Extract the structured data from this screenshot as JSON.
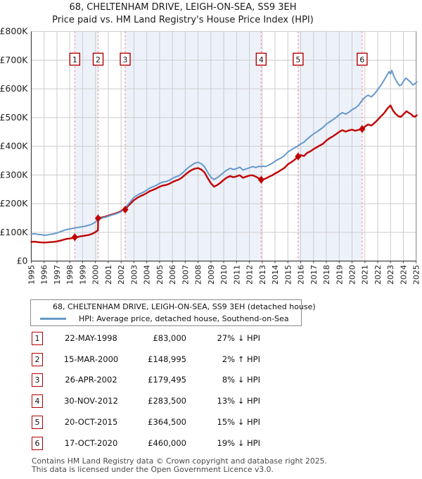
{
  "title": "68, CHELTENHAM DRIVE, LEIGH-ON-SEA, SS9 3EH",
  "subtitle": "Price paid vs. HM Land Registry's House Price Index (HPI)",
  "legend": [
    {
      "label": "68, CHELTENHAM DRIVE, LEIGH-ON-SEA, SS9 3EH (detached house)",
      "color": "#c00000"
    },
    {
      "label": "HPI: Average price, detached house, Southend-on-Sea",
      "color": "#6699cc"
    }
  ],
  "chart_data": {
    "type": "line",
    "title": "Price paid vs. HM Land Registry's House Price Index (HPI)",
    "xlabel": "",
    "ylabel": "",
    "x_range": [
      1995,
      2025
    ],
    "y_range_gbp": [
      0,
      800000
    ],
    "grid": true,
    "units": "GBP thousands",
    "y_ticks": [
      {
        "value": 0,
        "label": "£0"
      },
      {
        "value": 100,
        "label": "£100K"
      },
      {
        "value": 200,
        "label": "£200K"
      },
      {
        "value": 300,
        "label": "£300K"
      },
      {
        "value": 400,
        "label": "£400K"
      },
      {
        "value": 500,
        "label": "£500K"
      },
      {
        "value": 600,
        "label": "£600K"
      },
      {
        "value": 700,
        "label": "£700K"
      },
      {
        "value": 800,
        "label": "£800K"
      }
    ],
    "x_ticks": [
      1995,
      1996,
      1997,
      1998,
      1999,
      2000,
      2001,
      2002,
      2003,
      2004,
      2005,
      2006,
      2007,
      2008,
      2009,
      2010,
      2011,
      2012,
      2013,
      2014,
      2015,
      2016,
      2017,
      2018,
      2019,
      2020,
      2021,
      2022,
      2023,
      2024,
      2025
    ],
    "colors": {
      "property_line": "#c00000",
      "hpi_line": "#6699cc",
      "sale_dash": "#f28a8a",
      "band_fill": "#edf1fa",
      "grid": "#cccccc",
      "axis": "#444444",
      "badge_border": "#b00000"
    },
    "series": [
      {
        "name": "68, CHELTENHAM DRIVE, LEIGH-ON-SEA, SS9 3EH (detached house)",
        "color": "#c00000",
        "points": [
          [
            1995.0,
            67
          ],
          [
            1995.25,
            67.5
          ],
          [
            1995.5,
            66
          ],
          [
            1995.75,
            65
          ],
          [
            1996.0,
            64.5
          ],
          [
            1996.25,
            65
          ],
          [
            1996.5,
            66
          ],
          [
            1996.75,
            67
          ],
          [
            1997.0,
            68.5
          ],
          [
            1997.25,
            71
          ],
          [
            1997.5,
            74
          ],
          [
            1997.75,
            77
          ],
          [
            1998.0,
            78.5
          ],
          [
            1998.2,
            80
          ],
          [
            1998.39,
            80.5
          ],
          [
            1998.4,
            83
          ],
          [
            1998.6,
            84
          ],
          [
            1998.8,
            86
          ],
          [
            1999.0,
            87
          ],
          [
            1999.25,
            89
          ],
          [
            1999.5,
            91
          ],
          [
            1999.75,
            95
          ],
          [
            2000.0,
            101
          ],
          [
            2000.2,
            107
          ],
          [
            2000.21,
            149
          ],
          [
            2000.4,
            151
          ],
          [
            2000.6,
            153
          ],
          [
            2000.8,
            155
          ],
          [
            2001.0,
            158
          ],
          [
            2001.25,
            162
          ],
          [
            2001.5,
            165
          ],
          [
            2001.75,
            169
          ],
          [
            2002.0,
            174
          ],
          [
            2002.2,
            181
          ],
          [
            2002.32,
            185
          ],
          [
            2002.33,
            179.5
          ],
          [
            2002.5,
            190
          ],
          [
            2002.75,
            201
          ],
          [
            2003.0,
            212
          ],
          [
            2003.25,
            220
          ],
          [
            2003.5,
            226
          ],
          [
            2003.75,
            231
          ],
          [
            2004.0,
            237
          ],
          [
            2004.25,
            244
          ],
          [
            2004.5,
            248
          ],
          [
            2004.75,
            253
          ],
          [
            2005.0,
            259
          ],
          [
            2005.25,
            263
          ],
          [
            2005.5,
            265
          ],
          [
            2005.75,
            269
          ],
          [
            2006.0,
            275
          ],
          [
            2006.25,
            280
          ],
          [
            2006.5,
            284
          ],
          [
            2006.75,
            291
          ],
          [
            2007.0,
            301
          ],
          [
            2007.25,
            310
          ],
          [
            2007.5,
            317
          ],
          [
            2007.75,
            322
          ],
          [
            2008.0,
            324
          ],
          [
            2008.25,
            319
          ],
          [
            2008.5,
            309
          ],
          [
            2008.75,
            289
          ],
          [
            2009.0,
            271
          ],
          [
            2009.25,
            259
          ],
          [
            2009.5,
            265
          ],
          [
            2009.75,
            273
          ],
          [
            2010.0,
            283
          ],
          [
            2010.25,
            291
          ],
          [
            2010.5,
            296
          ],
          [
            2010.75,
            292
          ],
          [
            2011.0,
            295
          ],
          [
            2011.25,
            299
          ],
          [
            2011.5,
            290
          ],
          [
            2011.75,
            294
          ],
          [
            2012.0,
            298
          ],
          [
            2012.25,
            299
          ],
          [
            2012.5,
            294
          ],
          [
            2012.75,
            288
          ],
          [
            2012.92,
            283.5
          ],
          [
            2013.0,
            284
          ],
          [
            2013.25,
            287
          ],
          [
            2013.5,
            293
          ],
          [
            2013.75,
            298
          ],
          [
            2014.0,
            305
          ],
          [
            2014.25,
            311
          ],
          [
            2014.5,
            318
          ],
          [
            2014.75,
            325
          ],
          [
            2015.0,
            337
          ],
          [
            2015.25,
            344
          ],
          [
            2015.5,
            352
          ],
          [
            2015.8,
            364.5
          ],
          [
            2016.0,
            369
          ],
          [
            2016.25,
            366
          ],
          [
            2016.5,
            377
          ],
          [
            2016.75,
            382
          ],
          [
            2017.0,
            390
          ],
          [
            2017.25,
            396
          ],
          [
            2017.5,
            403
          ],
          [
            2017.75,
            409
          ],
          [
            2018.0,
            420
          ],
          [
            2018.25,
            428
          ],
          [
            2018.5,
            434
          ],
          [
            2018.75,
            442
          ],
          [
            2019.0,
            450
          ],
          [
            2019.25,
            456
          ],
          [
            2019.5,
            451
          ],
          [
            2019.75,
            455
          ],
          [
            2020.0,
            458
          ],
          [
            2020.25,
            454
          ],
          [
            2020.5,
            457
          ],
          [
            2020.79,
            460
          ],
          [
            2021.0,
            468
          ],
          [
            2021.25,
            476
          ],
          [
            2021.5,
            472
          ],
          [
            2021.75,
            481
          ],
          [
            2022.0,
            492
          ],
          [
            2022.25,
            504
          ],
          [
            2022.5,
            515
          ],
          [
            2022.75,
            531
          ],
          [
            2023.0,
            542
          ],
          [
            2023.2,
            524
          ],
          [
            2023.4,
            513
          ],
          [
            2023.6,
            505
          ],
          [
            2023.8,
            502
          ],
          [
            2024.0,
            511
          ],
          [
            2024.25,
            522
          ],
          [
            2024.4,
            517
          ],
          [
            2024.6,
            512
          ],
          [
            2024.75,
            505
          ],
          [
            2024.9,
            503
          ],
          [
            2025.05,
            508
          ]
        ]
      },
      {
        "name": "HPI: Average price, detached house, Southend-on-Sea",
        "color": "#6699cc",
        "points": [
          [
            1995.0,
            94
          ],
          [
            1995.25,
            95
          ],
          [
            1995.5,
            93
          ],
          [
            1995.75,
            92
          ],
          [
            1996.0,
            90
          ],
          [
            1996.25,
            91
          ],
          [
            1996.5,
            93
          ],
          [
            1996.75,
            95
          ],
          [
            1997.0,
            98
          ],
          [
            1997.25,
            102
          ],
          [
            1997.5,
            106
          ],
          [
            1997.75,
            110
          ],
          [
            1998.0,
            112
          ],
          [
            1998.25,
            114
          ],
          [
            1998.5,
            116
          ],
          [
            1998.75,
            118
          ],
          [
            1999.0,
            120
          ],
          [
            1999.25,
            122
          ],
          [
            1999.5,
            125
          ],
          [
            1999.75,
            129
          ],
          [
            2000.0,
            136
          ],
          [
            2000.2,
            144
          ],
          [
            2000.4,
            148
          ],
          [
            2000.6,
            151
          ],
          [
            2000.8,
            153
          ],
          [
            2001.0,
            156
          ],
          [
            2001.25,
            160
          ],
          [
            2001.5,
            163
          ],
          [
            2001.75,
            167
          ],
          [
            2002.0,
            172
          ],
          [
            2002.2,
            179
          ],
          [
            2002.32,
            185
          ],
          [
            2002.5,
            195
          ],
          [
            2002.75,
            208
          ],
          [
            2003.0,
            222
          ],
          [
            2003.25,
            229
          ],
          [
            2003.5,
            235
          ],
          [
            2003.75,
            240
          ],
          [
            2004.0,
            247
          ],
          [
            2004.25,
            255
          ],
          [
            2004.5,
            259
          ],
          [
            2004.75,
            264
          ],
          [
            2005.0,
            271
          ],
          [
            2005.25,
            275
          ],
          [
            2005.5,
            277
          ],
          [
            2005.75,
            281
          ],
          [
            2006.0,
            288
          ],
          [
            2006.25,
            293
          ],
          [
            2006.5,
            297
          ],
          [
            2006.75,
            305
          ],
          [
            2007.0,
            316
          ],
          [
            2007.25,
            326
          ],
          [
            2007.5,
            334
          ],
          [
            2007.75,
            341
          ],
          [
            2008.0,
            344
          ],
          [
            2008.25,
            339
          ],
          [
            2008.5,
            329
          ],
          [
            2008.75,
            309
          ],
          [
            2009.0,
            292
          ],
          [
            2009.25,
            284
          ],
          [
            2009.5,
            291
          ],
          [
            2009.75,
            299
          ],
          [
            2010.0,
            309
          ],
          [
            2010.25,
            317
          ],
          [
            2010.5,
            323
          ],
          [
            2010.75,
            319
          ],
          [
            2011.0,
            322
          ],
          [
            2011.25,
            327
          ],
          [
            2011.5,
            317
          ],
          [
            2011.75,
            321
          ],
          [
            2012.0,
            325
          ],
          [
            2012.25,
            329
          ],
          [
            2012.5,
            326
          ],
          [
            2012.75,
            330
          ],
          [
            2012.92,
            329
          ],
          [
            2013.0,
            331
          ],
          [
            2013.25,
            329
          ],
          [
            2013.5,
            334
          ],
          [
            2013.75,
            340
          ],
          [
            2014.0,
            348
          ],
          [
            2014.25,
            354
          ],
          [
            2014.5,
            360
          ],
          [
            2014.75,
            368
          ],
          [
            2015.0,
            380
          ],
          [
            2015.25,
            387
          ],
          [
            2015.5,
            394
          ],
          [
            2015.8,
            401
          ],
          [
            2016.0,
            408
          ],
          [
            2016.25,
            414
          ],
          [
            2016.5,
            425
          ],
          [
            2016.75,
            434
          ],
          [
            2017.0,
            443
          ],
          [
            2017.25,
            450
          ],
          [
            2017.5,
            458
          ],
          [
            2017.75,
            466
          ],
          [
            2018.0,
            477
          ],
          [
            2018.25,
            485
          ],
          [
            2018.5,
            492
          ],
          [
            2018.75,
            500
          ],
          [
            2019.0,
            510
          ],
          [
            2019.25,
            517
          ],
          [
            2019.5,
            512
          ],
          [
            2019.75,
            518
          ],
          [
            2020.0,
            527
          ],
          [
            2020.25,
            533
          ],
          [
            2020.5,
            542
          ],
          [
            2020.79,
            560
          ],
          [
            2021.0,
            570
          ],
          [
            2021.25,
            578
          ],
          [
            2021.5,
            572
          ],
          [
            2021.75,
            582
          ],
          [
            2022.0,
            597
          ],
          [
            2022.25,
            612
          ],
          [
            2022.5,
            630
          ],
          [
            2022.75,
            650
          ],
          [
            2022.9,
            660
          ],
          [
            2023.0,
            652
          ],
          [
            2023.1,
            664
          ],
          [
            2023.3,
            640
          ],
          [
            2023.5,
            624
          ],
          [
            2023.7,
            611
          ],
          [
            2023.85,
            614
          ],
          [
            2024.0,
            626
          ],
          [
            2024.2,
            637
          ],
          [
            2024.4,
            630
          ],
          [
            2024.6,
            622
          ],
          [
            2024.75,
            613
          ],
          [
            2024.9,
            618
          ],
          [
            2025.05,
            624
          ]
        ]
      }
    ],
    "sales": [
      {
        "num": "1",
        "year": 1998.39,
        "price_k": 83.0
      },
      {
        "num": "2",
        "year": 2000.21,
        "price_k": 149.0
      },
      {
        "num": "3",
        "year": 2002.32,
        "price_k": 179.5
      },
      {
        "num": "4",
        "year": 2012.92,
        "price_k": 283.5
      },
      {
        "num": "5",
        "year": 2015.8,
        "price_k": 364.5
      },
      {
        "num": "6",
        "year": 2020.79,
        "price_k": 460.0
      }
    ]
  },
  "table": {
    "rows": [
      {
        "num": "1",
        "date": "22-MAY-1998",
        "price": "£83,000",
        "hpi": "27% ↓ HPI"
      },
      {
        "num": "2",
        "date": "15-MAR-2000",
        "price": "£148,995",
        "hpi": "2% ↑ HPI"
      },
      {
        "num": "3",
        "date": "26-APR-2002",
        "price": "£179,495",
        "hpi": "8% ↓ HPI"
      },
      {
        "num": "4",
        "date": "30-NOV-2012",
        "price": "£283,500",
        "hpi": "13% ↓ HPI"
      },
      {
        "num": "5",
        "date": "20-OCT-2015",
        "price": "£364,500",
        "hpi": "15% ↓ HPI"
      },
      {
        "num": "6",
        "date": "17-OCT-2020",
        "price": "£460,000",
        "hpi": "19% ↓ HPI"
      }
    ]
  },
  "footer": {
    "line1": "Contains HM Land Registry data © Crown copyright and database right 2025.",
    "line2": "This data is licensed under the Open Government Licence v3.0."
  }
}
